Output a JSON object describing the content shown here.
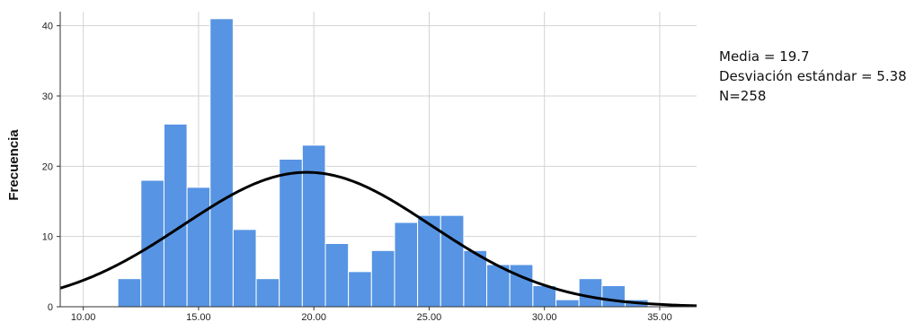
{
  "chart_data": {
    "type": "bar",
    "subtype": "histogram",
    "ylabel": "Frecuencia",
    "xlabel": "",
    "xlim": [
      9.0,
      36.6
    ],
    "ylim": [
      0,
      42
    ],
    "x_ticks": [
      "10.00",
      "15.00",
      "20.00",
      "25.00",
      "30.00",
      "35.00"
    ],
    "y_ticks": [
      "0",
      "10",
      "20",
      "30",
      "40"
    ],
    "grid": true,
    "bin_width": 1.0,
    "bins": [
      {
        "start": 11.5,
        "count": 4
      },
      {
        "start": 12.5,
        "count": 18
      },
      {
        "start": 13.5,
        "count": 26
      },
      {
        "start": 14.5,
        "count": 17
      },
      {
        "start": 15.5,
        "count": 41
      },
      {
        "start": 16.5,
        "count": 11
      },
      {
        "start": 17.5,
        "count": 4
      },
      {
        "start": 18.5,
        "count": 21
      },
      {
        "start": 19.5,
        "count": 23
      },
      {
        "start": 20.5,
        "count": 9
      },
      {
        "start": 21.5,
        "count": 5
      },
      {
        "start": 22.5,
        "count": 8
      },
      {
        "start": 23.5,
        "count": 12
      },
      {
        "start": 24.5,
        "count": 13
      },
      {
        "start": 25.5,
        "count": 13
      },
      {
        "start": 26.5,
        "count": 8
      },
      {
        "start": 27.5,
        "count": 6
      },
      {
        "start": 28.5,
        "count": 6
      },
      {
        "start": 29.5,
        "count": 3
      },
      {
        "start": 30.5,
        "count": 1
      },
      {
        "start": 31.5,
        "count": 4
      },
      {
        "start": 32.5,
        "count": 3
      },
      {
        "start": 33.5,
        "count": 1
      }
    ],
    "normal_curve": {
      "mean": 19.7,
      "sd": 5.38,
      "n": 258
    },
    "colors": {
      "bar": "#5794e3",
      "bar_edge": "#ffffff",
      "curve": "#000000",
      "grid": "#d3d3d3"
    }
  },
  "stats": {
    "mean_text": "Media = 19.7",
    "sd_text": "Desviación estándar = 5.38",
    "n_text": "N=258"
  }
}
